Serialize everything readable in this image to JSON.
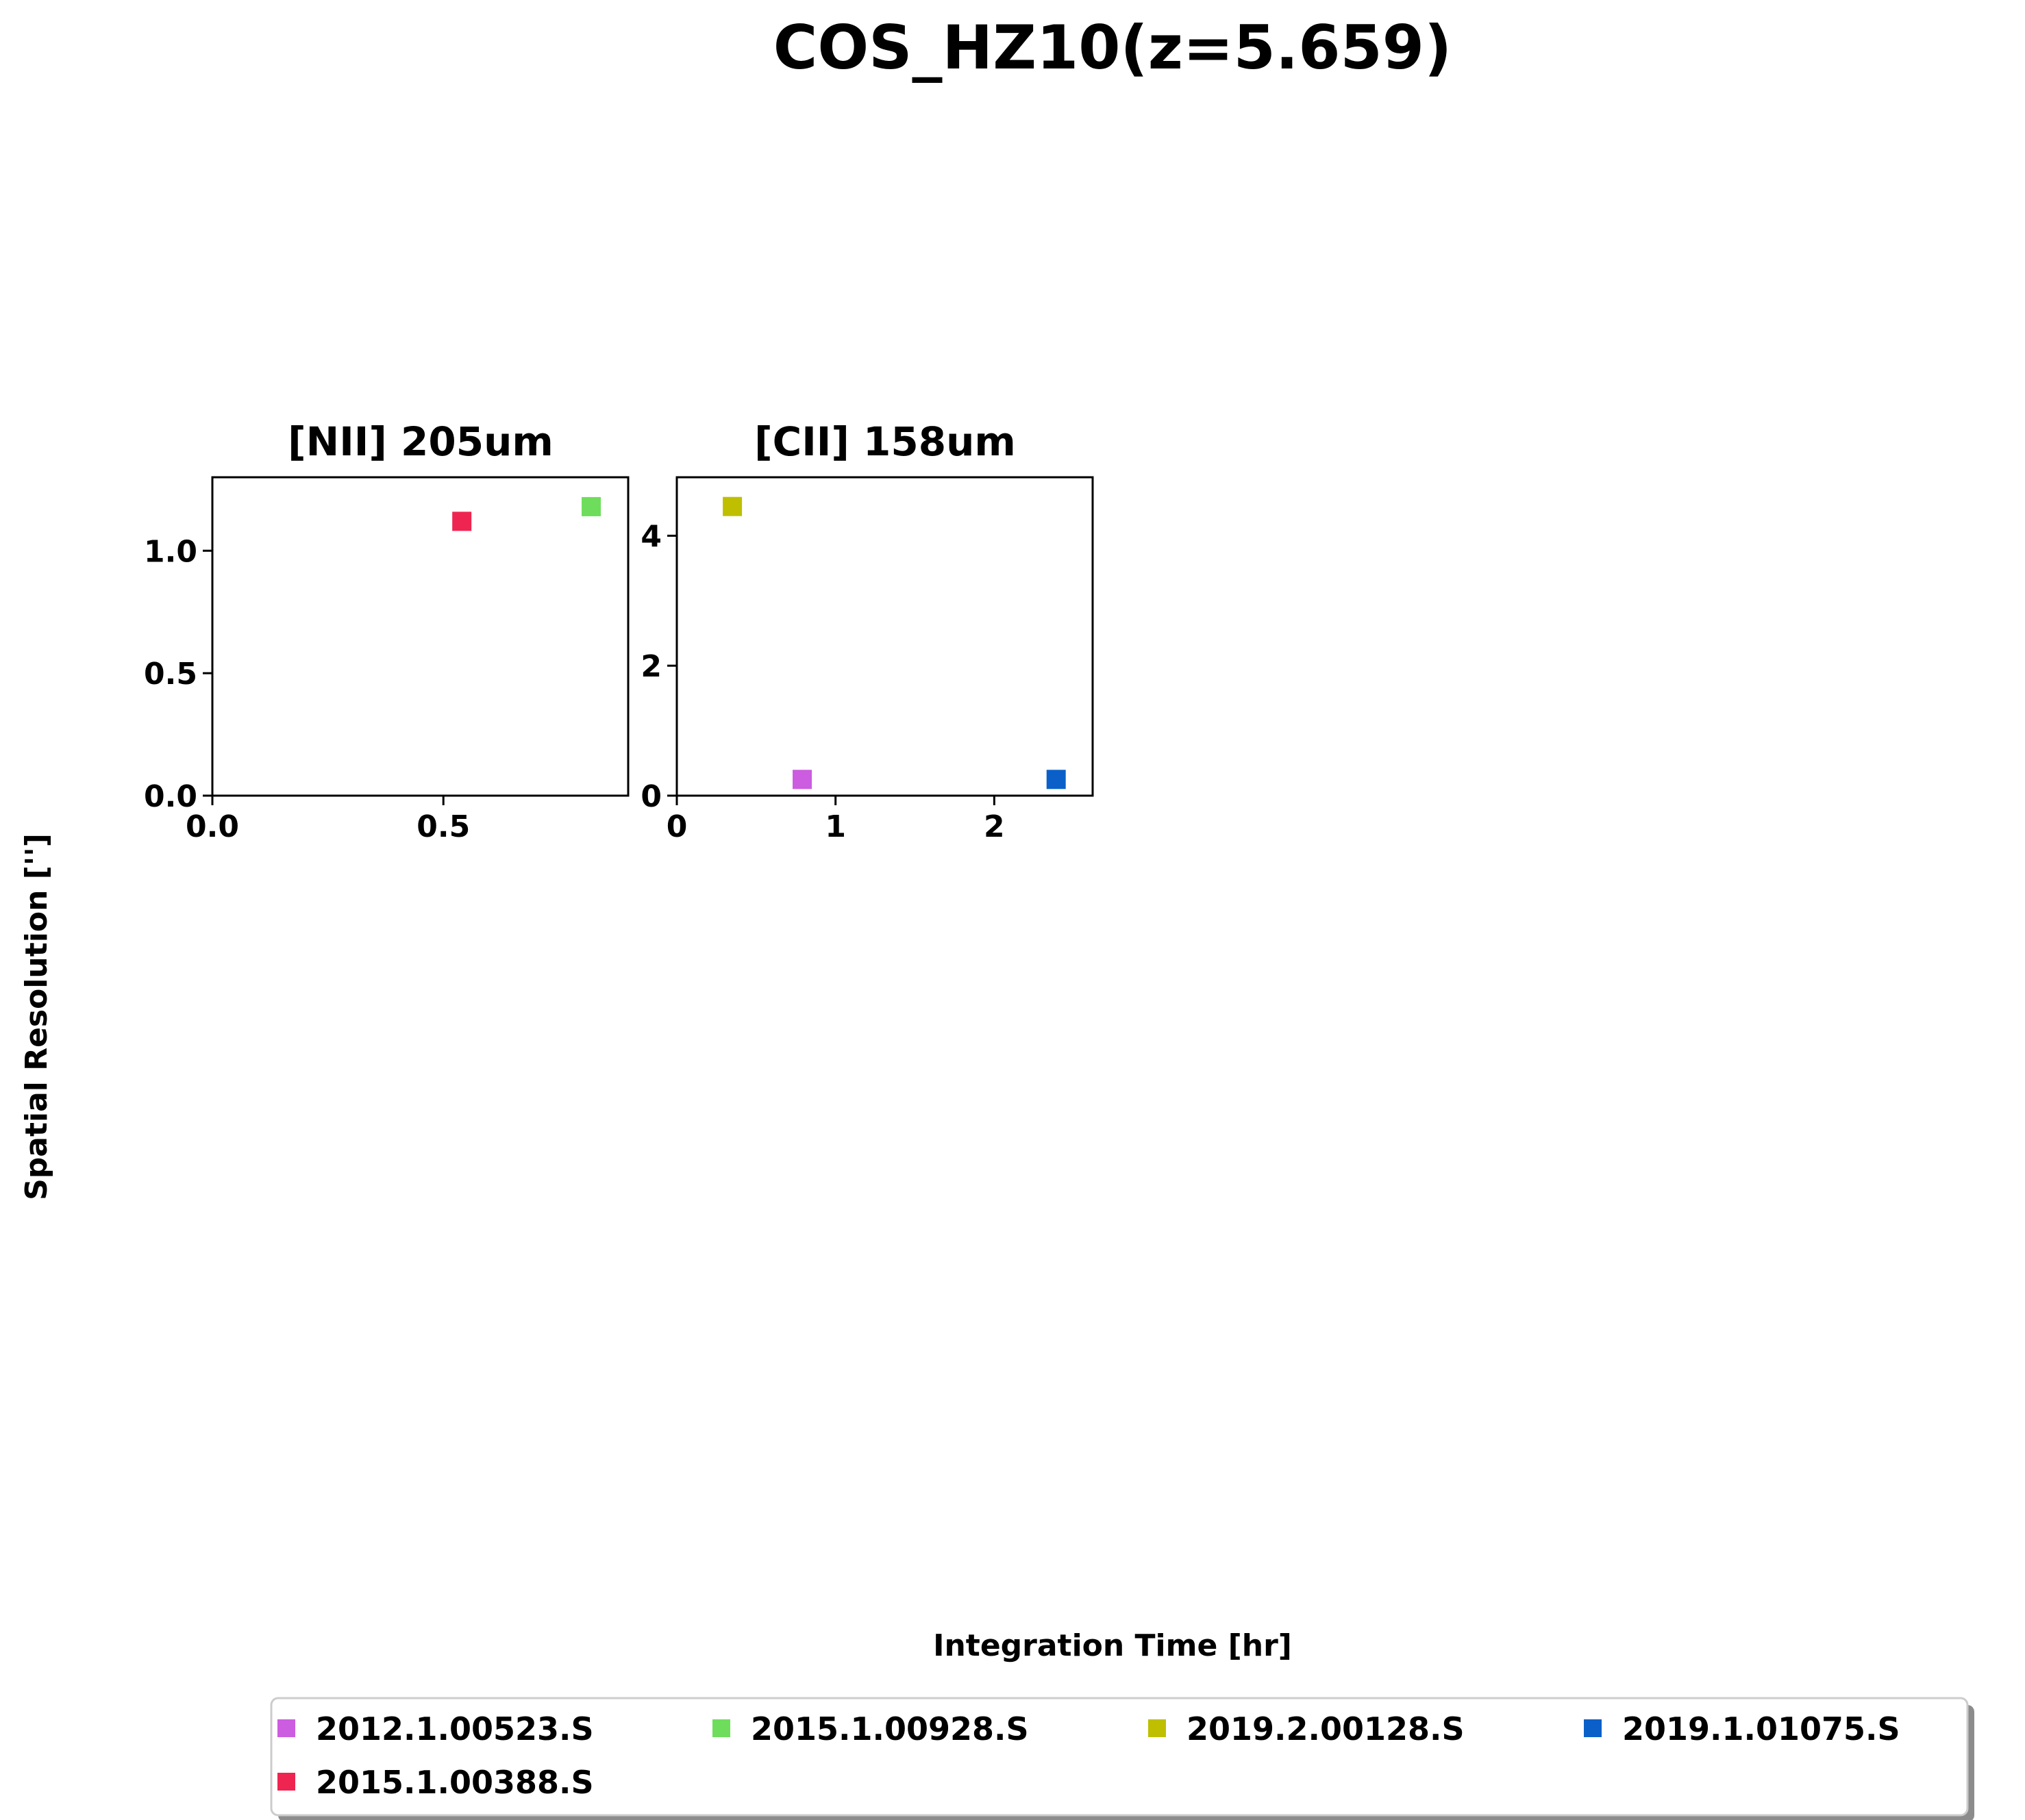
{
  "figure": {
    "suptitle": "COS_HZ10(z=5.659)",
    "xlabel": "Integration Time [hr]",
    "ylabel": "Spatial Resolution ['']"
  },
  "legend": {
    "placement": "bottom-center",
    "columns": 4,
    "entries": [
      {
        "label": "2012.1.00523.S",
        "color": "#cc5ce0"
      },
      {
        "label": "2015.1.00928.S",
        "color": "#6edd5c"
      },
      {
        "label": "2019.2.00128.S",
        "color": "#bfbf00"
      },
      {
        "label": "2019.1.01075.S",
        "color": "#0a60c8"
      },
      {
        "label": "2015.1.00388.S",
        "color": "#ee2550"
      }
    ]
  },
  "chart_data": [
    {
      "type": "scatter",
      "title": "[NII] 205um",
      "xlim": [
        0,
        0.9
      ],
      "ylim": [
        0,
        1.3
      ],
      "xticks": [
        "0.0",
        "0.5"
      ],
      "xtick_values": [
        0,
        0.5
      ],
      "yticks": [
        "0.0",
        "0.5",
        "1.0"
      ],
      "ytick_values": [
        0,
        0.5,
        1.0
      ],
      "grid": false,
      "series": [
        {
          "name": "2015.1.00388.S",
          "color": "#ee2550",
          "x": [
            0.54
          ],
          "y": [
            1.12
          ]
        },
        {
          "name": "2015.1.00928.S",
          "color": "#6edd5c",
          "x": [
            0.82
          ],
          "y": [
            1.18
          ]
        }
      ]
    },
    {
      "type": "scatter",
      "title": "[CII] 158um",
      "xlim": [
        0,
        2.62
      ],
      "ylim": [
        0,
        4.9
      ],
      "xticks": [
        "0",
        "1",
        "2"
      ],
      "xtick_values": [
        0,
        1,
        2
      ],
      "yticks": [
        "0",
        "2",
        "4"
      ],
      "ytick_values": [
        0,
        2,
        4
      ],
      "grid": false,
      "series": [
        {
          "name": "2019.2.00128.S",
          "color": "#bfbf00",
          "x": [
            0.35
          ],
          "y": [
            4.45
          ]
        },
        {
          "name": "2012.1.00523.S",
          "color": "#cc5ce0",
          "x": [
            0.79
          ],
          "y": [
            0.25
          ]
        },
        {
          "name": "2019.1.01075.S",
          "color": "#0a60c8",
          "x": [
            2.39
          ],
          "y": [
            0.25
          ]
        }
      ]
    }
  ]
}
